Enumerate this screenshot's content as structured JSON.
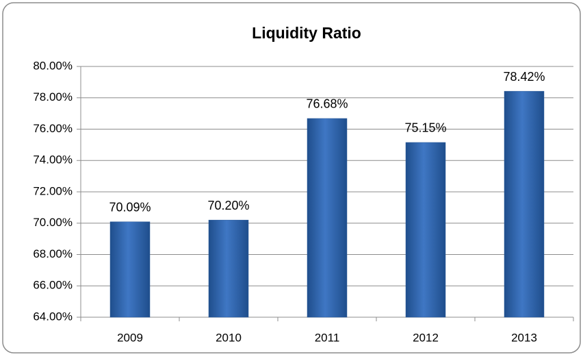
{
  "chart_data": {
    "type": "bar",
    "title": "Liquidity Ratio",
    "categories": [
      "2009",
      "2010",
      "2011",
      "2012",
      "2013"
    ],
    "values": [
      70.09,
      70.2,
      76.68,
      75.15,
      78.42
    ],
    "value_labels": [
      "70.09%",
      "70.20%",
      "76.68%",
      "75.15%",
      "78.42%"
    ],
    "color": "#3f77c4",
    "ylim": [
      64,
      80
    ],
    "yticks": [
      {
        "value": 64,
        "label": "64.00%"
      },
      {
        "value": 66,
        "label": "66.00%"
      },
      {
        "value": 68,
        "label": "68.00%"
      },
      {
        "value": 70,
        "label": "70.00%"
      },
      {
        "value": 72,
        "label": "72.00%"
      },
      {
        "value": 74,
        "label": "74.00%"
      },
      {
        "value": 76,
        "label": "76.00%"
      },
      {
        "value": 78,
        "label": "78.00%"
      },
      {
        "value": 80,
        "label": "80.00%"
      }
    ],
    "grid": true
  }
}
